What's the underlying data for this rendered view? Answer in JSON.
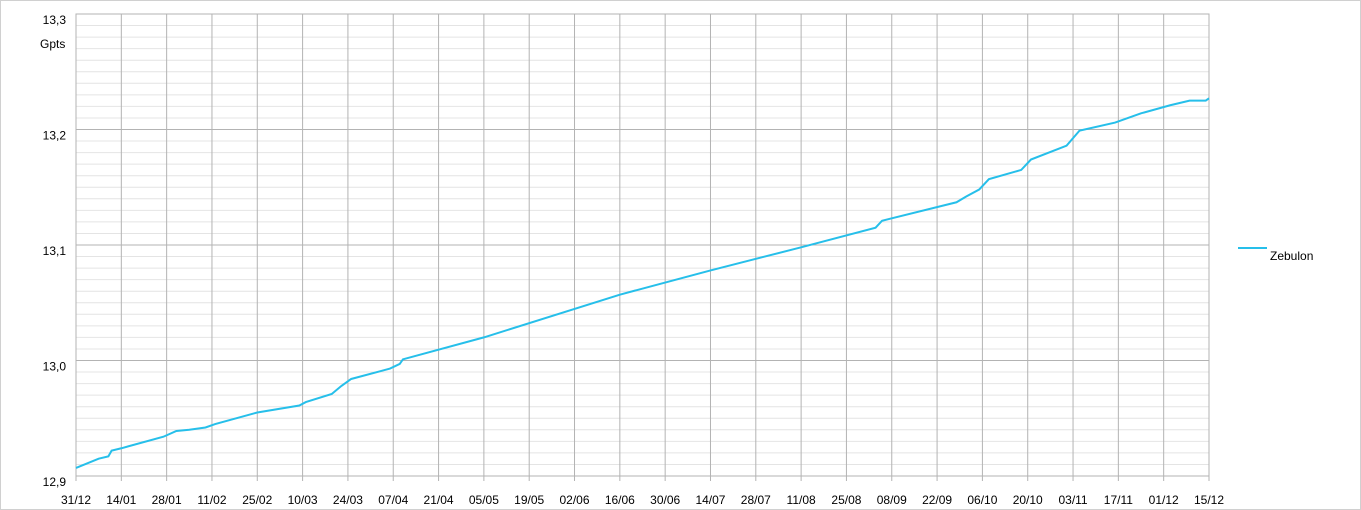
{
  "chart_data": {
    "type": "line",
    "y_label": "Gpts",
    "x": [
      0,
      7,
      10,
      11,
      14,
      27,
      31,
      35,
      40,
      43,
      56,
      69,
      71,
      79,
      82,
      85,
      97,
      100,
      101,
      126,
      168,
      196,
      224,
      247,
      249,
      272,
      275,
      279,
      282,
      292,
      295,
      306,
      310,
      321,
      329,
      338,
      344,
      349,
      350
    ],
    "series": [
      {
        "name": "Zebulon",
        "color": "#26bfea",
        "values": [
          12.907,
          12.915,
          12.917,
          12.922,
          12.924,
          12.934,
          12.939,
          12.94,
          12.942,
          12.945,
          12.955,
          12.961,
          12.964,
          12.971,
          12.978,
          12.984,
          12.993,
          12.997,
          13.001,
          13.02,
          13.057,
          13.078,
          13.098,
          13.115,
          13.121,
          13.137,
          13.142,
          13.148,
          13.157,
          13.165,
          13.174,
          13.186,
          13.199,
          13.206,
          13.214,
          13.221,
          13.225,
          13.225,
          13.227
        ]
      }
    ],
    "xlim": [
      0,
      350
    ],
    "xticks": [
      {
        "value": 0,
        "label": "31/12"
      },
      {
        "value": 14,
        "label": "14/01"
      },
      {
        "value": 28,
        "label": "28/01"
      },
      {
        "value": 42,
        "label": "11/02"
      },
      {
        "value": 56,
        "label": "25/02"
      },
      {
        "value": 70,
        "label": "10/03"
      },
      {
        "value": 84,
        "label": "24/03"
      },
      {
        "value": 98,
        "label": "07/04"
      },
      {
        "value": 112,
        "label": "21/04"
      },
      {
        "value": 126,
        "label": "05/05"
      },
      {
        "value": 140,
        "label": "19/05"
      },
      {
        "value": 154,
        "label": "02/06"
      },
      {
        "value": 168,
        "label": "16/06"
      },
      {
        "value": 182,
        "label": "30/06"
      },
      {
        "value": 196,
        "label": "14/07"
      },
      {
        "value": 210,
        "label": "28/07"
      },
      {
        "value": 224,
        "label": "11/08"
      },
      {
        "value": 238,
        "label": "25/08"
      },
      {
        "value": 252,
        "label": "08/09"
      },
      {
        "value": 266,
        "label": "22/09"
      },
      {
        "value": 280,
        "label": "06/10"
      },
      {
        "value": 294,
        "label": "20/10"
      },
      {
        "value": 308,
        "label": "03/11"
      },
      {
        "value": 322,
        "label": "17/11"
      },
      {
        "value": 336,
        "label": "01/12"
      },
      {
        "value": 350,
        "label": "15/12"
      }
    ],
    "ylim": [
      12.9,
      13.3
    ],
    "yticks": [
      {
        "value": 12.9,
        "label": "12,9"
      },
      {
        "value": 13.0,
        "label": "13,0"
      },
      {
        "value": 13.1,
        "label": "13,1"
      },
      {
        "value": 13.2,
        "label": "13,2"
      },
      {
        "value": 13.3,
        "label": "13,3"
      }
    ],
    "grid": true,
    "minor_grid": true,
    "legend": "right"
  }
}
